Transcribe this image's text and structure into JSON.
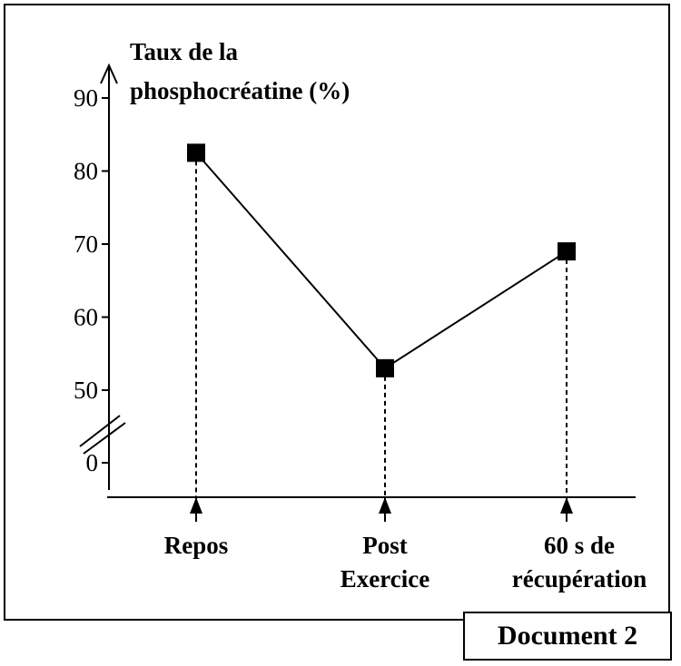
{
  "chart_data": {
    "type": "line",
    "ylabel_lines": [
      "Taux de la",
      "phosphocréatine (%)"
    ],
    "y_ticks": [
      0,
      50,
      60,
      70,
      80,
      90
    ],
    "axis_break": true,
    "categories": [
      [
        "Repos"
      ],
      [
        "Post",
        "Exercice"
      ],
      [
        "60 s de",
        "récupération"
      ]
    ],
    "values": [
      82.5,
      53,
      69
    ],
    "ylim": [
      50,
      90
    ],
    "marker": "square",
    "dashed_drop_lines": true,
    "colors": {
      "line": "#000000",
      "marker": "#000000"
    }
  },
  "document_label": "Document 2"
}
